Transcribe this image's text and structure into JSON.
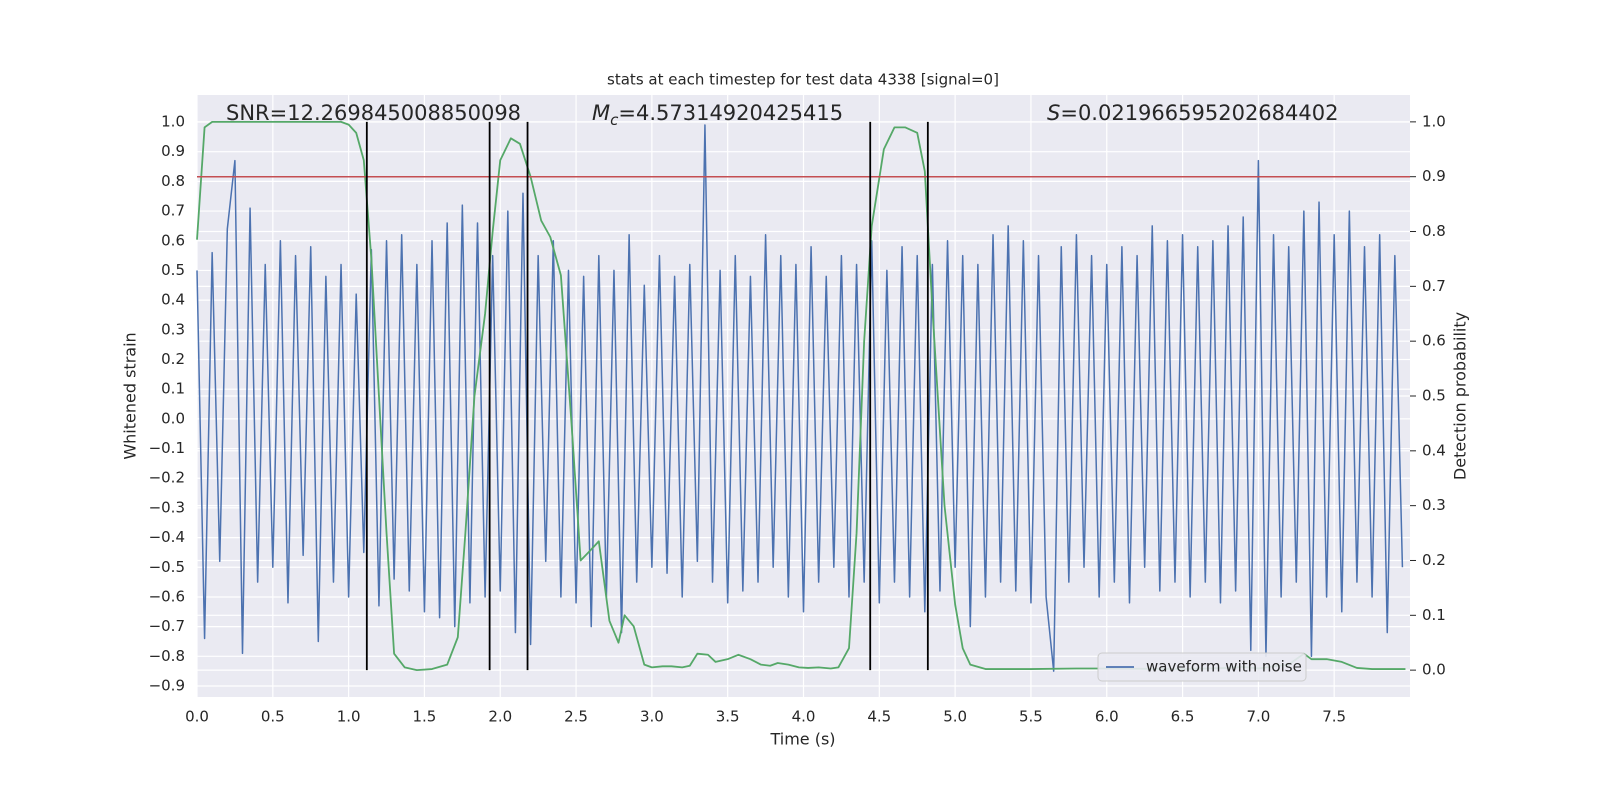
{
  "chart_data": {
    "type": "line",
    "title": "stats at each timestep for test data 4338 [signal=0]",
    "xlabel": "Time (s)",
    "ylabel": "Whitened strain",
    "y2label": "Detection probability",
    "annotations": [
      {
        "text": "SNR=12.269845008850098"
      },
      {
        "symbol": "M",
        "subscript": "c",
        "text": "=4.57314920425415"
      },
      {
        "symbol": "S",
        "text": "=0.021966595202684402"
      }
    ],
    "xlim": [
      0,
      8.0
    ],
    "ylim": [
      -0.937,
      1.091
    ],
    "y2lim": [
      -0.049,
      1.049
    ],
    "xticks": [
      {
        "value": 0,
        "label": "0.0"
      },
      {
        "value": 0.5,
        "label": "0.5"
      },
      {
        "value": 1,
        "label": "1.0"
      },
      {
        "value": 1.5,
        "label": "1.5"
      },
      {
        "value": 2,
        "label": "2.0"
      },
      {
        "value": 2.5,
        "label": "2.5"
      },
      {
        "value": 3,
        "label": "3.0"
      },
      {
        "value": 3.5,
        "label": "3.5"
      },
      {
        "value": 4,
        "label": "4.0"
      },
      {
        "value": 4.5,
        "label": "4.5"
      },
      {
        "value": 5,
        "label": "5.0"
      },
      {
        "value": 5.5,
        "label": "5.5"
      },
      {
        "value": 6,
        "label": "6.0"
      },
      {
        "value": 6.5,
        "label": "6.5"
      },
      {
        "value": 7,
        "label": "7.0"
      },
      {
        "value": 7.5,
        "label": "7.5"
      }
    ],
    "yticks": [
      {
        "value": -0.9,
        "label": "−0.9"
      },
      {
        "value": -0.8,
        "label": "−0.8"
      },
      {
        "value": -0.7,
        "label": "−0.7"
      },
      {
        "value": -0.6,
        "label": "−0.6"
      },
      {
        "value": -0.5,
        "label": "−0.5"
      },
      {
        "value": -0.4,
        "label": "−0.4"
      },
      {
        "value": -0.3,
        "label": "−0.3"
      },
      {
        "value": -0.2,
        "label": "−0.2"
      },
      {
        "value": -0.1,
        "label": "−0.1"
      },
      {
        "value": 0,
        "label": "0.0"
      },
      {
        "value": 0.1,
        "label": "0.1"
      },
      {
        "value": 0.2,
        "label": "0.2"
      },
      {
        "value": 0.3,
        "label": "0.3"
      },
      {
        "value": 0.4,
        "label": "0.4"
      },
      {
        "value": 0.5,
        "label": "0.5"
      },
      {
        "value": 0.6,
        "label": "0.6"
      },
      {
        "value": 0.7,
        "label": "0.7"
      },
      {
        "value": 0.8,
        "label": "0.8"
      },
      {
        "value": 0.9,
        "label": "0.9"
      },
      {
        "value": 1,
        "label": "1.0"
      }
    ],
    "y2ticks": [
      {
        "value": 0,
        "label": "0.0"
      },
      {
        "value": 0.1,
        "label": "0.1"
      },
      {
        "value": 0.2,
        "label": "0.2"
      },
      {
        "value": 0.3,
        "label": "0.3"
      },
      {
        "value": 0.4,
        "label": "0.4"
      },
      {
        "value": 0.5,
        "label": "0.5"
      },
      {
        "value": 0.6,
        "label": "0.6"
      },
      {
        "value": 0.7,
        "label": "0.7"
      },
      {
        "value": 0.8,
        "label": "0.8"
      },
      {
        "value": 0.9,
        "label": "0.9"
      },
      {
        "value": 1,
        "label": "1.0"
      }
    ],
    "grid": true,
    "legend": "lower right",
    "series": [
      {
        "name": "waveform with noise",
        "color": "#4c72b0",
        "x": [
          0,
          0.05,
          0.1,
          0.15,
          0.2,
          0.25,
          0.3,
          0.35,
          0.4,
          0.45,
          0.5,
          0.55,
          0.6,
          0.65,
          0.7,
          0.75,
          0.8,
          0.85,
          0.9,
          0.95,
          1,
          1.05,
          1.1,
          1.15,
          1.2,
          1.25,
          1.3,
          1.35,
          1.4,
          1.45,
          1.5,
          1.55,
          1.6,
          1.65,
          1.7,
          1.75,
          1.8,
          1.85,
          1.9,
          1.95,
          2,
          2.05,
          2.1,
          2.15,
          2.2,
          2.25,
          2.3,
          2.35,
          2.4,
          2.45,
          2.5,
          2.55,
          2.6,
          2.65,
          2.7,
          2.75,
          2.8,
          2.85,
          2.9,
          2.95,
          3,
          3.05,
          3.1,
          3.15,
          3.2,
          3.25,
          3.3,
          3.35,
          3.4,
          3.45,
          3.5,
          3.55,
          3.6,
          3.65,
          3.7,
          3.75,
          3.8,
          3.85,
          3.9,
          3.95,
          4,
          4.05,
          4.1,
          4.15,
          4.2,
          4.25,
          4.3,
          4.35,
          4.4,
          4.45,
          4.5,
          4.55,
          4.6,
          4.65,
          4.7,
          4.75,
          4.8,
          4.85,
          4.9,
          4.95,
          5,
          5.05,
          5.1,
          5.15,
          5.2,
          5.25,
          5.3,
          5.35,
          5.4,
          5.45,
          5.5,
          5.55,
          5.6,
          5.65,
          5.7,
          5.75,
          5.8,
          5.85,
          5.9,
          5.95,
          6,
          6.05,
          6.1,
          6.15,
          6.2,
          6.25,
          6.3,
          6.35,
          6.4,
          6.45,
          6.5,
          6.55,
          6.6,
          6.65,
          6.7,
          6.75,
          6.8,
          6.85,
          6.9,
          6.95,
          7,
          7.05,
          7.1,
          7.15,
          7.2,
          7.25,
          7.3,
          7.35,
          7.4,
          7.45,
          7.5,
          7.55,
          7.6,
          7.65,
          7.7,
          7.75,
          7.8,
          7.85,
          7.9,
          7.95
        ],
        "values": [
          0.5,
          -0.74,
          0.56,
          -0.48,
          0.64,
          0.87,
          -0.79,
          0.71,
          -0.55,
          0.52,
          -0.5,
          0.6,
          -0.62,
          0.55,
          -0.46,
          0.58,
          -0.75,
          0.48,
          -0.55,
          0.52,
          -0.6,
          0.42,
          -0.45,
          0.57,
          -0.63,
          0.6,
          -0.54,
          0.62,
          -0.58,
          0.52,
          -0.65,
          0.6,
          -0.67,
          0.66,
          -0.7,
          0.72,
          -0.62,
          0.66,
          -0.6,
          0.55,
          -0.58,
          0.7,
          -0.72,
          0.76,
          -0.76,
          0.55,
          -0.48,
          0.6,
          -0.6,
          0.5,
          -0.62,
          0.48,
          -0.7,
          0.55,
          -0.6,
          0.5,
          -0.72,
          0.62,
          -0.55,
          0.45,
          -0.5,
          0.55,
          -0.52,
          0.48,
          -0.6,
          0.52,
          -0.48,
          0.99,
          -0.55,
          0.5,
          -0.62,
          0.55,
          -0.58,
          0.48,
          -0.55,
          0.62,
          -0.5,
          0.55,
          -0.6,
          0.52,
          -0.65,
          0.58,
          -0.55,
          0.48,
          -0.5,
          0.55,
          -0.6,
          0.52,
          -0.55,
          0.6,
          -0.62,
          0.5,
          -0.55,
          0.58,
          -0.6,
          0.55,
          -0.65,
          0.52,
          -0.58,
          0.6,
          -0.5,
          0.55,
          -0.7,
          0.52,
          -0.6,
          0.62,
          -0.55,
          0.65,
          -0.58,
          0.6,
          -0.62,
          0.55,
          -0.6,
          -0.85,
          0.58,
          -0.55,
          0.62,
          -0.5,
          0.55,
          -0.6,
          0.52,
          -0.55,
          0.58,
          -0.62,
          0.55,
          -0.5,
          0.65,
          -0.58,
          0.6,
          -0.55,
          0.62,
          -0.6,
          0.58,
          -0.55,
          0.6,
          -0.62,
          0.65,
          -0.58,
          0.68,
          -0.78,
          0.87,
          -0.8,
          0.62,
          -0.6,
          0.58,
          -0.55,
          0.7,
          -0.8,
          0.73,
          -0.6,
          0.62,
          -0.65,
          0.7,
          -0.55,
          0.58,
          -0.6,
          0.62,
          -0.72,
          0.55,
          -0.5
        ]
      },
      {
        "color": "#55a868",
        "axis": "y2",
        "x": [
          0,
          0.05,
          0.1,
          0.2,
          0.4,
          0.6,
          0.8,
          0.95,
          1,
          1.05,
          1.1,
          1.15,
          1.2,
          1.25,
          1.3,
          1.37,
          1.45,
          1.55,
          1.65,
          1.72,
          1.77,
          1.83,
          1.9,
          1.95,
          2,
          2.07,
          2.13,
          2.2,
          2.27,
          2.33,
          2.4,
          2.47,
          2.53,
          2.6,
          2.65,
          2.72,
          2.78,
          2.82,
          2.88,
          2.95,
          3,
          3.07,
          3.13,
          3.2,
          3.25,
          3.3,
          3.37,
          3.42,
          3.5,
          3.57,
          3.65,
          3.72,
          3.78,
          3.83,
          3.9,
          3.97,
          4.03,
          4.1,
          4.18,
          4.23,
          4.3,
          4.35,
          4.4,
          4.45,
          4.53,
          4.6,
          4.67,
          4.75,
          4.8,
          4.85,
          4.93,
          5,
          5.05,
          5.1,
          5.2,
          5.5,
          5.8,
          6,
          6.5,
          6.8,
          6.9,
          7,
          7.1,
          7.2,
          7.3,
          7.35,
          7.45,
          7.55,
          7.65,
          7.75,
          7.97
        ],
        "values": [
          0.785,
          0.99,
          1,
          1,
          1,
          1,
          1,
          1,
          0.995,
          0.98,
          0.93,
          0.75,
          0.5,
          0.25,
          0.03,
          0.005,
          0,
          0.002,
          0.01,
          0.06,
          0.25,
          0.5,
          0.65,
          0.8,
          0.93,
          0.97,
          0.96,
          0.9,
          0.82,
          0.79,
          0.72,
          0.45,
          0.2,
          0.22,
          0.235,
          0.09,
          0.05,
          0.1,
          0.08,
          0.01,
          0.005,
          0.007,
          0.007,
          0.005,
          0.008,
          0.03,
          0.028,
          0.015,
          0.02,
          0.028,
          0.02,
          0.01,
          0.008,
          0.013,
          0.01,
          0.005,
          0.004,
          0.005,
          0.003,
          0.005,
          0.04,
          0.25,
          0.6,
          0.81,
          0.95,
          0.99,
          0.99,
          0.98,
          0.91,
          0.66,
          0.3,
          0.12,
          0.04,
          0.01,
          0.002,
          0.002,
          0.003,
          0.003,
          0.002,
          0.004,
          0.006,
          0.003,
          0.007,
          0.01,
          0.03,
          0.02,
          0.02,
          0.015,
          0.004,
          0.002,
          0.002
        ]
      }
    ],
    "threshold": {
      "y2": 0.9,
      "color": "#c44e52"
    },
    "vlines": {
      "x": [
        1.12,
        1.93,
        2.18,
        4.44,
        4.82
      ],
      "y2range": [
        0,
        1
      ],
      "color": "#000000"
    }
  }
}
